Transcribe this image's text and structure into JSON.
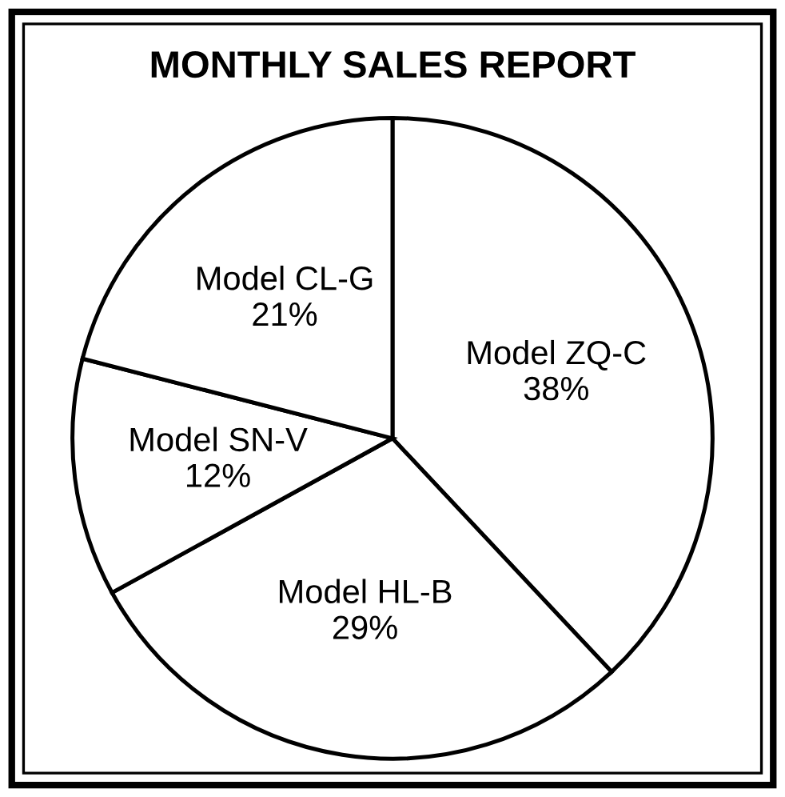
{
  "chart_data": {
    "type": "pie",
    "title": "MONTHLY SALES REPORT",
    "categories": [
      "Model ZQ-C",
      "Model HL-B",
      "Model SN-V",
      "Model CL-G"
    ],
    "values": [
      38,
      29,
      12,
      21
    ],
    "value_labels": [
      "38%",
      "29%",
      "12%",
      "21%"
    ],
    "colors": [
      "#ffffff",
      "#ffffff",
      "#ffffff",
      "#ffffff"
    ],
    "legend": false
  }
}
